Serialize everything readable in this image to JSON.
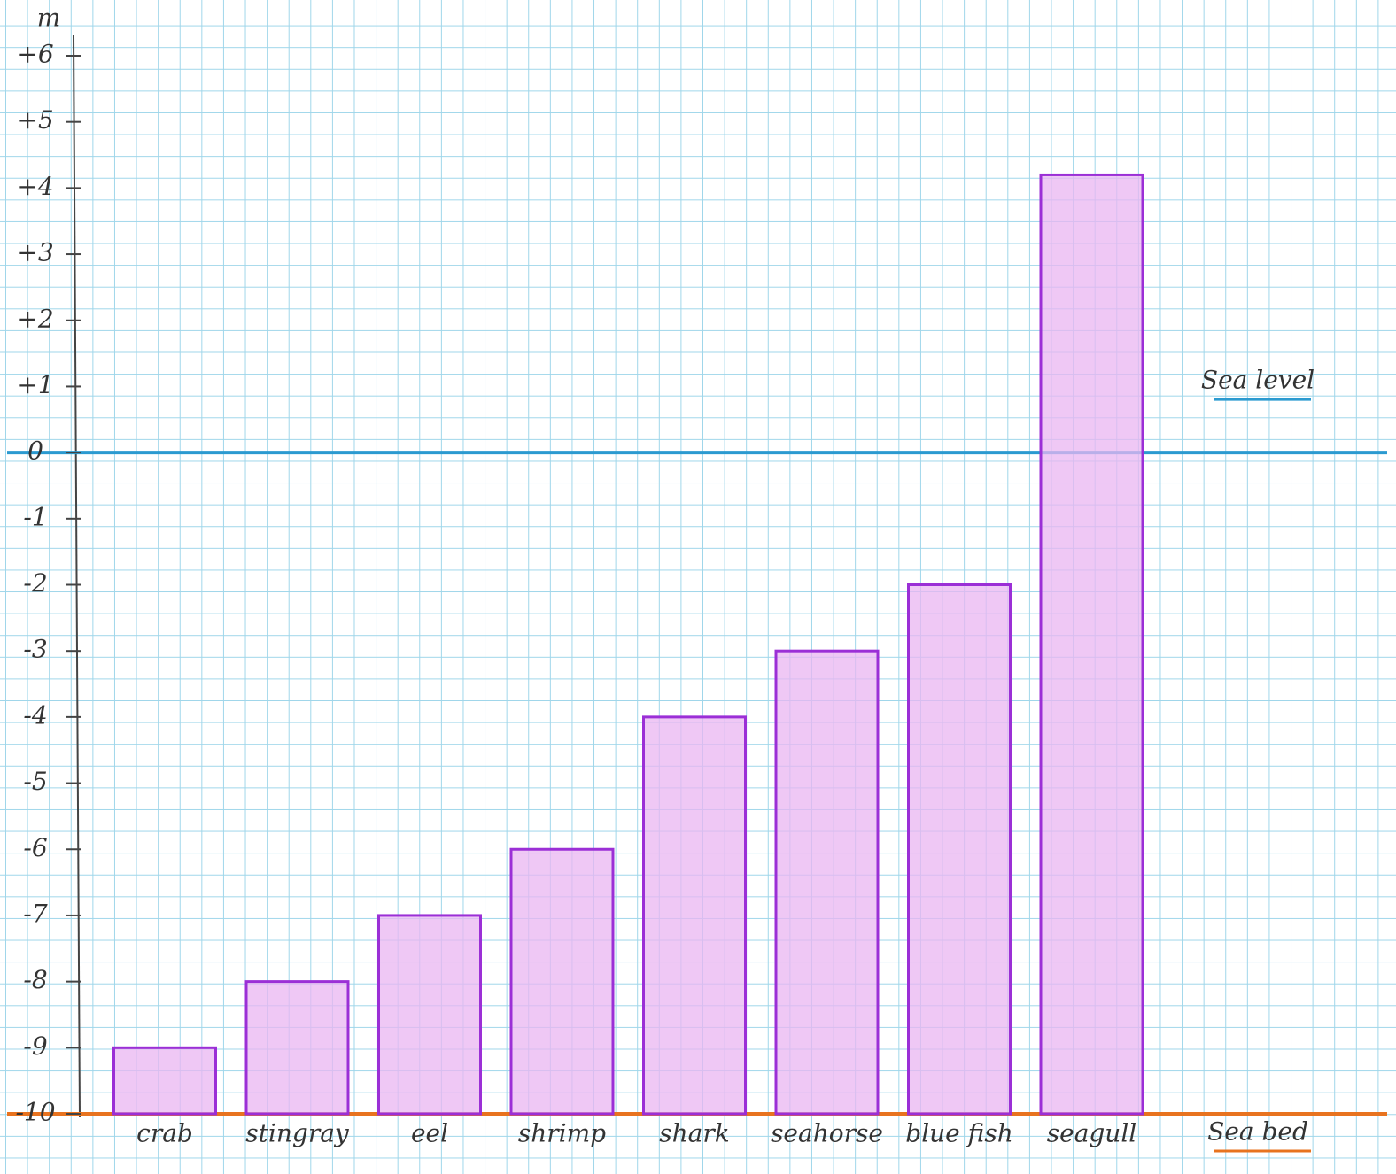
{
  "chart_data": {
    "type": "bar",
    "y_label": "m",
    "categories": [
      "crab",
      "stingray",
      "eel",
      "shrimp",
      "shark",
      "seahorse",
      "blue fish",
      "seagull"
    ],
    "values": [
      -9,
      -8,
      -7,
      -6,
      -4,
      -3,
      -2,
      4.2
    ],
    "color": "#eab6f2",
    "edge_color": "#9b2fd6",
    "ylim": [
      -10,
      6
    ],
    "yticks": [
      {
        "value": 6,
        "label": "+6"
      },
      {
        "value": 5,
        "label": "+5"
      },
      {
        "value": 4,
        "label": "+4"
      },
      {
        "value": 3,
        "label": "+3"
      },
      {
        "value": 2,
        "label": "+2"
      },
      {
        "value": 1,
        "label": "+1"
      },
      0,
      -1,
      -2,
      -3,
      -4,
      -5,
      -6,
      -7,
      -8,
      -9,
      -10
    ],
    "annotations": [
      {
        "label": "Sea level",
        "value": 0,
        "color": "#2b9ad0"
      },
      {
        "label": "Sea bed",
        "value": -10,
        "color": "#e8731f"
      }
    ]
  }
}
